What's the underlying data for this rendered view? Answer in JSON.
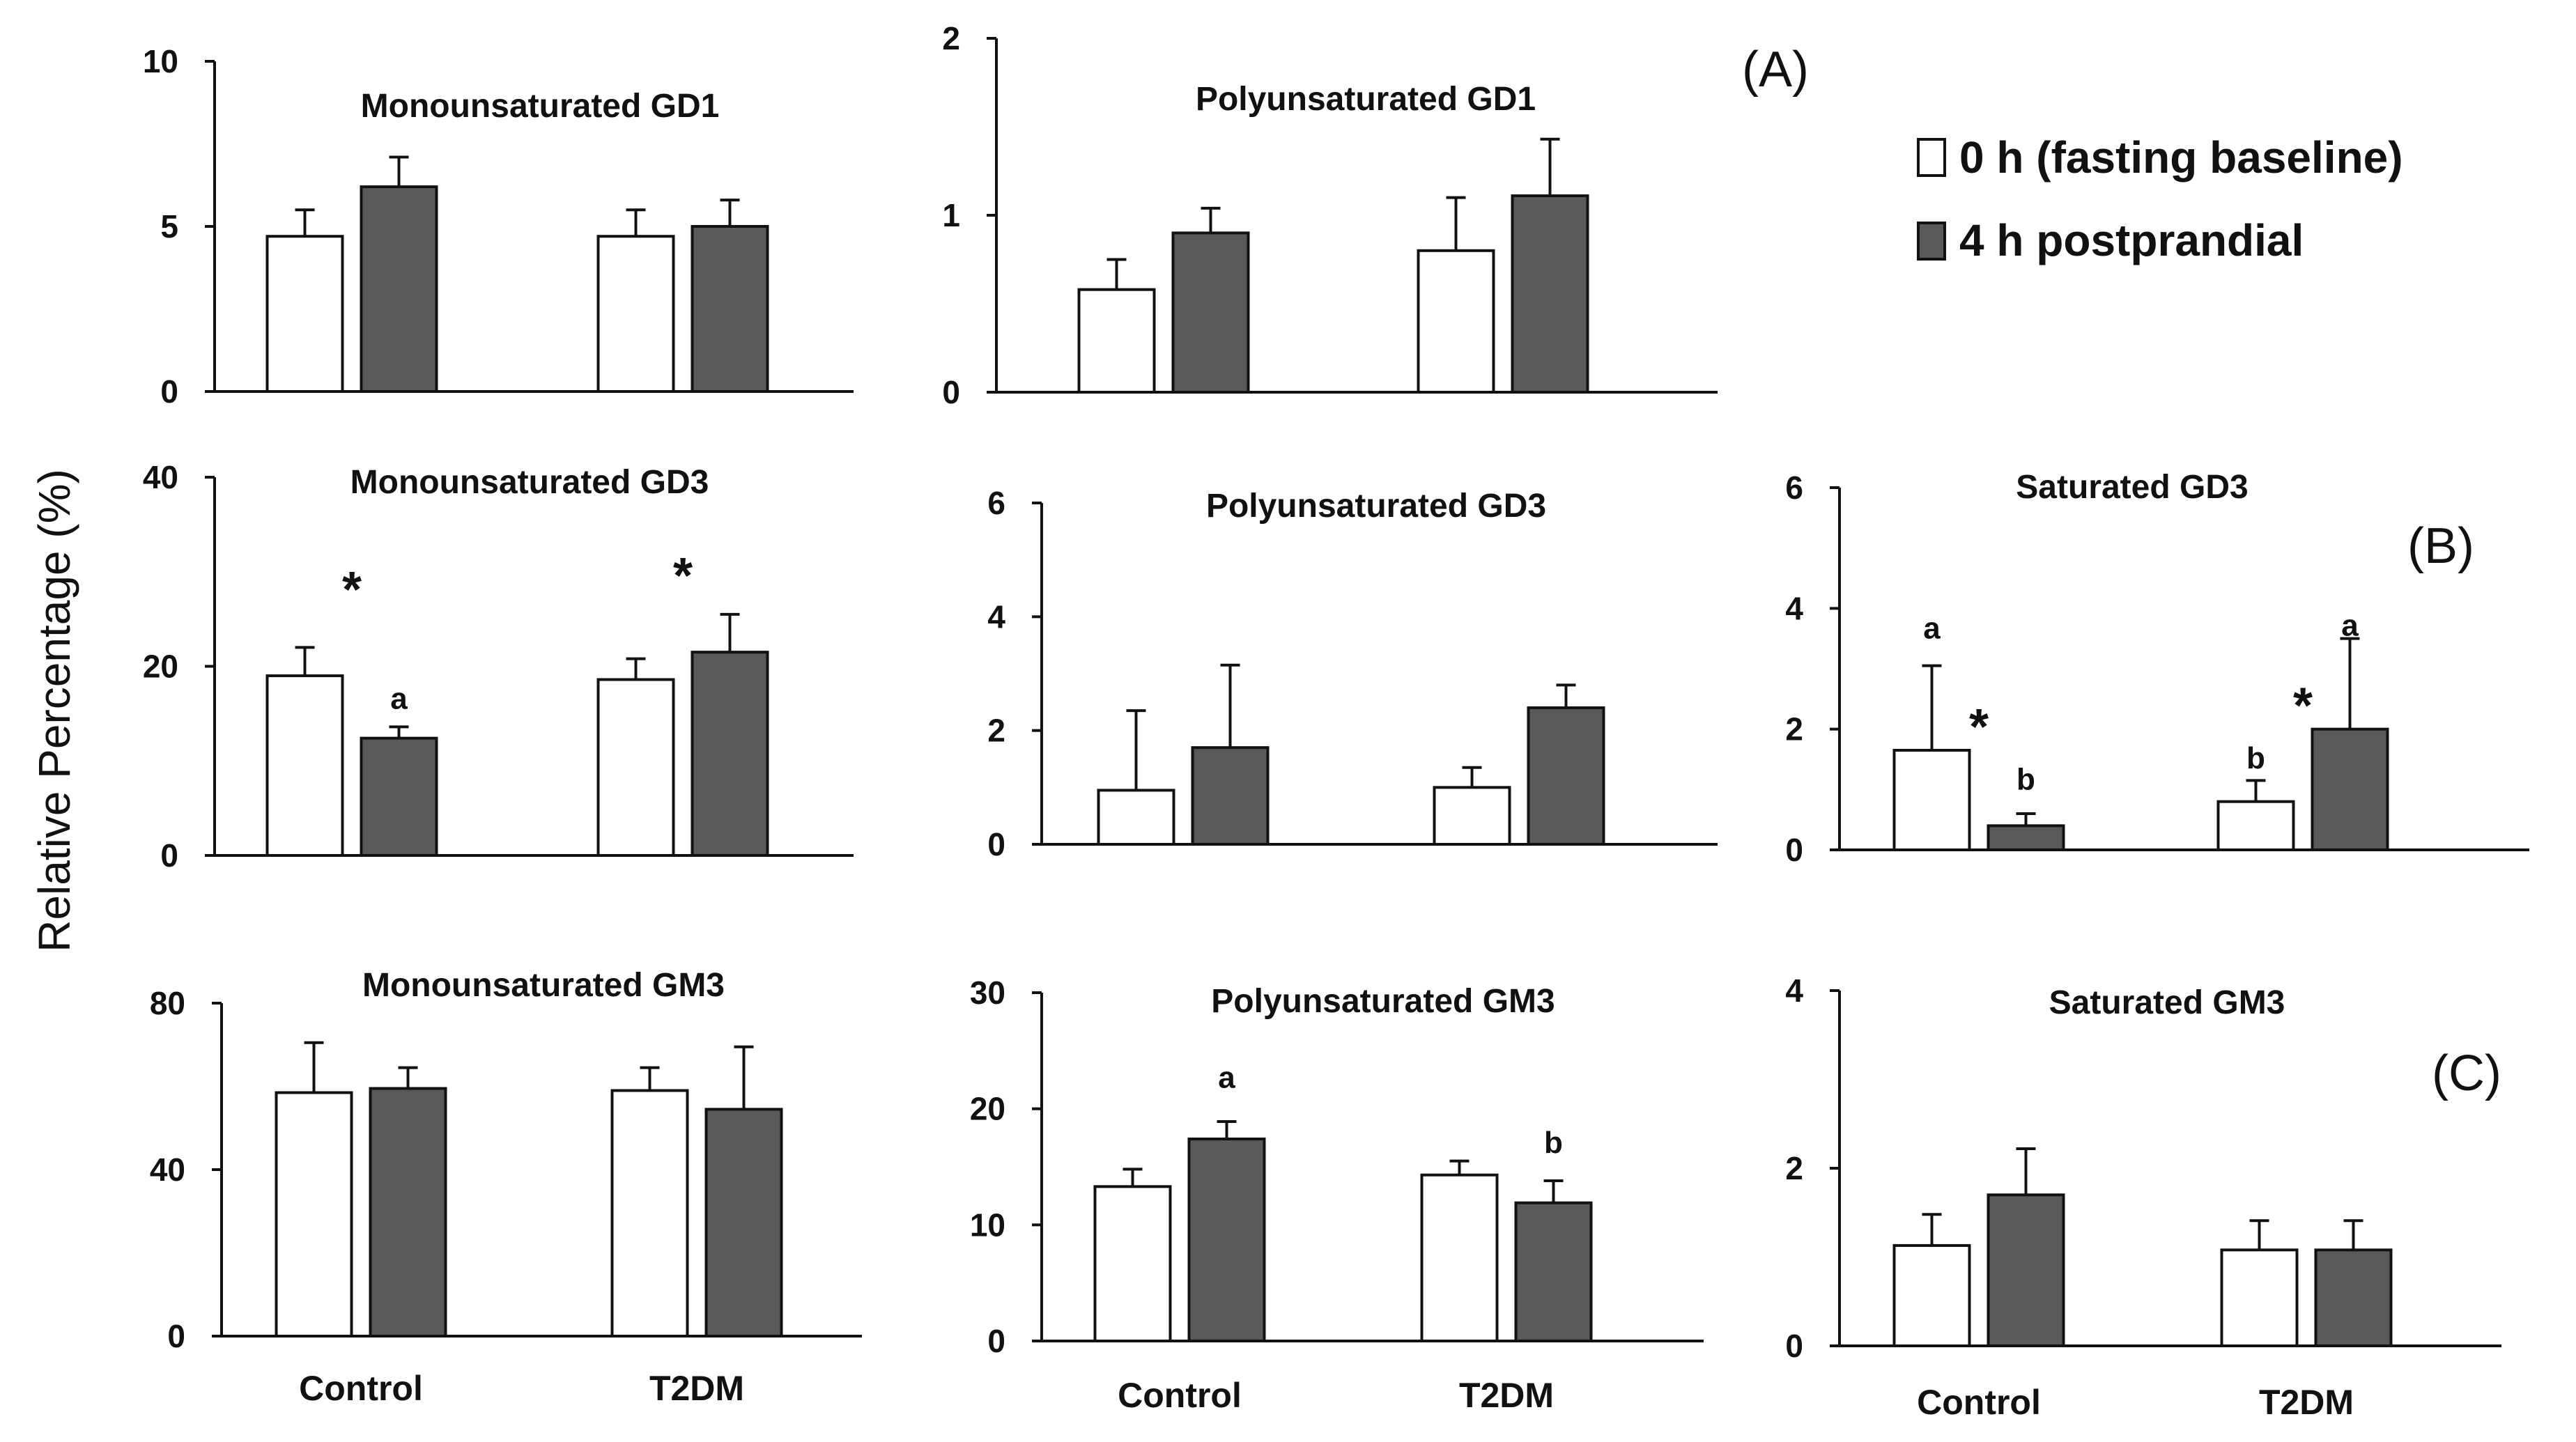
{
  "colors": {
    "baseline": "#ffffff",
    "postprandial": "#595959",
    "axis": "#111111",
    "outline": "#111111"
  },
  "ylabel": "Relative Percentage (%)",
  "legend": {
    "items": [
      {
        "label": "0 h (fasting baseline)",
        "color": "#ffffff"
      },
      {
        "label": "4 h postprandial",
        "color": "#595959"
      }
    ]
  },
  "panel_labels": {
    "A": "(A)",
    "B": "(B)",
    "C": "(C)"
  },
  "chart_data": [
    {
      "id": "mono-gd1",
      "type": "bar",
      "title": "Monounsaturated GD1",
      "categories": [
        "Control",
        "T2DM"
      ],
      "show_categories": false,
      "ylim": [
        0,
        10
      ],
      "yticks": [
        0,
        5,
        10
      ],
      "series": [
        {
          "name": "0 h (fasting baseline)",
          "values": [
            4.7,
            4.7
          ],
          "errors": [
            0.8,
            0.8
          ]
        },
        {
          "name": "4 h postprandial",
          "values": [
            6.2,
            5.0
          ],
          "errors": [
            0.9,
            0.8
          ]
        }
      ],
      "annotations": []
    },
    {
      "id": "poly-gd1",
      "type": "bar",
      "title": "Polyunsaturated GD1",
      "categories": [
        "Control",
        "T2DM"
      ],
      "show_categories": false,
      "ylim": [
        0,
        2
      ],
      "yticks": [
        0,
        1,
        2
      ],
      "series": [
        {
          "name": "0 h (fasting baseline)",
          "values": [
            0.58,
            0.8
          ],
          "errors": [
            0.17,
            0.3
          ]
        },
        {
          "name": "4 h postprandial",
          "values": [
            0.9,
            1.11
          ],
          "errors": [
            0.14,
            0.32
          ]
        }
      ],
      "annotations": []
    },
    {
      "id": "mono-gd3",
      "type": "bar",
      "title": "Monounsaturated GD3",
      "categories": [
        "Control",
        "T2DM"
      ],
      "show_categories": false,
      "ylim": [
        0,
        40
      ],
      "yticks": [
        0,
        20,
        40
      ],
      "series": [
        {
          "name": "0 h (fasting baseline)",
          "values": [
            19.0,
            18.6
          ],
          "errors": [
            3.0,
            2.2
          ]
        },
        {
          "name": "4 h postprandial",
          "values": [
            12.4,
            21.5
          ],
          "errors": [
            1.2,
            4.0
          ]
        }
      ],
      "annotations": [
        {
          "text": "*",
          "cat": 0,
          "series": "mid",
          "y": 28.5,
          "kind": "star"
        },
        {
          "text": "a",
          "cat": 0,
          "series": 1,
          "y": 15.5,
          "kind": "letter"
        },
        {
          "text": "*",
          "cat": 1,
          "series": "mid",
          "y": 30.0,
          "kind": "star"
        }
      ]
    },
    {
      "id": "poly-gd3",
      "type": "bar",
      "title": "Polyunsaturated GD3",
      "categories": [
        "Control",
        "T2DM"
      ],
      "show_categories": false,
      "ylim": [
        0,
        6
      ],
      "yticks": [
        0,
        2,
        4,
        6
      ],
      "series": [
        {
          "name": "0 h (fasting baseline)",
          "values": [
            0.95,
            1.0
          ],
          "errors": [
            1.4,
            0.35
          ]
        },
        {
          "name": "4 h postprandial",
          "values": [
            1.7,
            2.4
          ],
          "errors": [
            1.45,
            0.4
          ]
        }
      ],
      "annotations": []
    },
    {
      "id": "sat-gd3",
      "type": "bar",
      "title": "Saturated GD3",
      "categories": [
        "Control",
        "T2DM"
      ],
      "show_categories": false,
      "ylim": [
        0,
        6
      ],
      "yticks": [
        0,
        2,
        4,
        6
      ],
      "series": [
        {
          "name": "0 h (fasting baseline)",
          "values": [
            1.65,
            0.8
          ],
          "errors": [
            1.4,
            0.35
          ]
        },
        {
          "name": "4 h postprandial",
          "values": [
            0.4,
            2.0
          ],
          "errors": [
            0.2,
            1.5
          ]
        }
      ],
      "annotations": [
        {
          "text": "a",
          "cat": 0,
          "series": 0,
          "y": 3.5,
          "kind": "letter"
        },
        {
          "text": "*",
          "cat": 0,
          "series": "mid",
          "y": 2.1,
          "kind": "star"
        },
        {
          "text": "b",
          "cat": 0,
          "series": 1,
          "y": 1.0,
          "kind": "letter"
        },
        {
          "text": "b",
          "cat": 1,
          "series": 0,
          "y": 1.35,
          "kind": "letter"
        },
        {
          "text": "*",
          "cat": 1,
          "series": "mid",
          "y": 2.45,
          "kind": "star"
        },
        {
          "text": "a",
          "cat": 1,
          "series": 1,
          "y": 3.55,
          "kind": "letter"
        }
      ]
    },
    {
      "id": "mono-gm3",
      "type": "bar",
      "title": "Monounsaturated GM3",
      "categories": [
        "Control",
        "T2DM"
      ],
      "show_categories": true,
      "ylim": [
        0,
        80
      ],
      "yticks": [
        0,
        40,
        80
      ],
      "series": [
        {
          "name": "0 h (fasting baseline)",
          "values": [
            58.5,
            59.0
          ],
          "errors": [
            12.0,
            5.5
          ]
        },
        {
          "name": "4 h postprandial",
          "values": [
            59.5,
            54.5
          ],
          "errors": [
            5.0,
            15.0
          ]
        }
      ],
      "annotations": []
    },
    {
      "id": "poly-gm3",
      "type": "bar",
      "title": "Polyunsaturated GM3",
      "categories": [
        "Control",
        "T2DM"
      ],
      "show_categories": true,
      "ylim": [
        0,
        30
      ],
      "yticks": [
        0,
        10,
        20,
        30
      ],
      "series": [
        {
          "name": "0 h (fasting baseline)",
          "values": [
            13.3,
            14.3
          ],
          "errors": [
            1.5,
            1.2
          ]
        },
        {
          "name": "4 h postprandial",
          "values": [
            17.4,
            11.9
          ],
          "errors": [
            1.5,
            1.9
          ]
        }
      ],
      "annotations": [
        {
          "text": "a",
          "cat": 0,
          "series": 1,
          "y": 21.8,
          "kind": "letter"
        },
        {
          "text": "b",
          "cat": 1,
          "series": 1,
          "y": 16.2,
          "kind": "letter"
        }
      ]
    },
    {
      "id": "sat-gm3",
      "type": "bar",
      "title": "Saturated GM3",
      "categories": [
        "Control",
        "T2DM"
      ],
      "show_categories": true,
      "ylim": [
        0,
        4
      ],
      "yticks": [
        0,
        2,
        4
      ],
      "series": [
        {
          "name": "0 h (fasting baseline)",
          "values": [
            1.13,
            1.08
          ],
          "errors": [
            0.35,
            0.33
          ]
        },
        {
          "name": "4 h postprandial",
          "values": [
            1.7,
            1.08
          ],
          "errors": [
            0.52,
            0.33
          ]
        }
      ],
      "annotations": []
    }
  ]
}
